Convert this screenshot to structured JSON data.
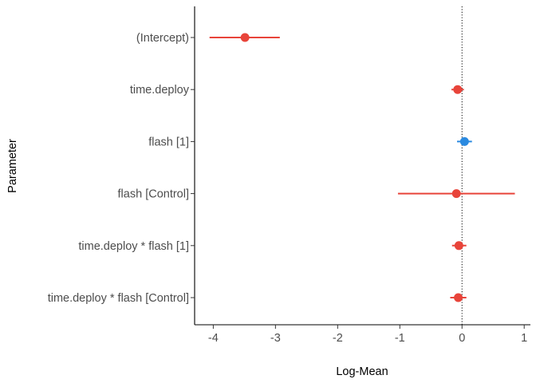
{
  "chart_data": {
    "type": "forest",
    "xlabel": "Log-Mean",
    "ylabel": "Parameter",
    "xlim": [
      -4.3,
      1.1
    ],
    "xticks": [
      -4,
      -3,
      -2,
      -1,
      0,
      1
    ],
    "xtick_labels": [
      "-4",
      "-3",
      "-2",
      "-1",
      "0",
      "1"
    ],
    "reference_line": 0,
    "grid": false,
    "colors": {
      "negative": "#e8443a",
      "positive": "#2b8ae0"
    },
    "parameters": [
      {
        "label": "(Intercept)",
        "estimate": -3.49,
        "lower": -4.06,
        "upper": -2.93,
        "sign": "negative"
      },
      {
        "label": "time.deploy",
        "estimate": -0.07,
        "lower": -0.17,
        "upper": 0.03,
        "sign": "negative"
      },
      {
        "label": "flash [1]",
        "estimate": 0.04,
        "lower": -0.08,
        "upper": 0.16,
        "sign": "positive"
      },
      {
        "label": "flash [Control]",
        "estimate": -0.09,
        "lower": -1.03,
        "upper": 0.85,
        "sign": "negative"
      },
      {
        "label": "time.deploy * flash [1]",
        "estimate": -0.05,
        "lower": -0.16,
        "upper": 0.07,
        "sign": "negative"
      },
      {
        "label": "time.deploy * flash [Control]",
        "estimate": -0.06,
        "lower": -0.19,
        "upper": 0.07,
        "sign": "negative"
      }
    ]
  }
}
